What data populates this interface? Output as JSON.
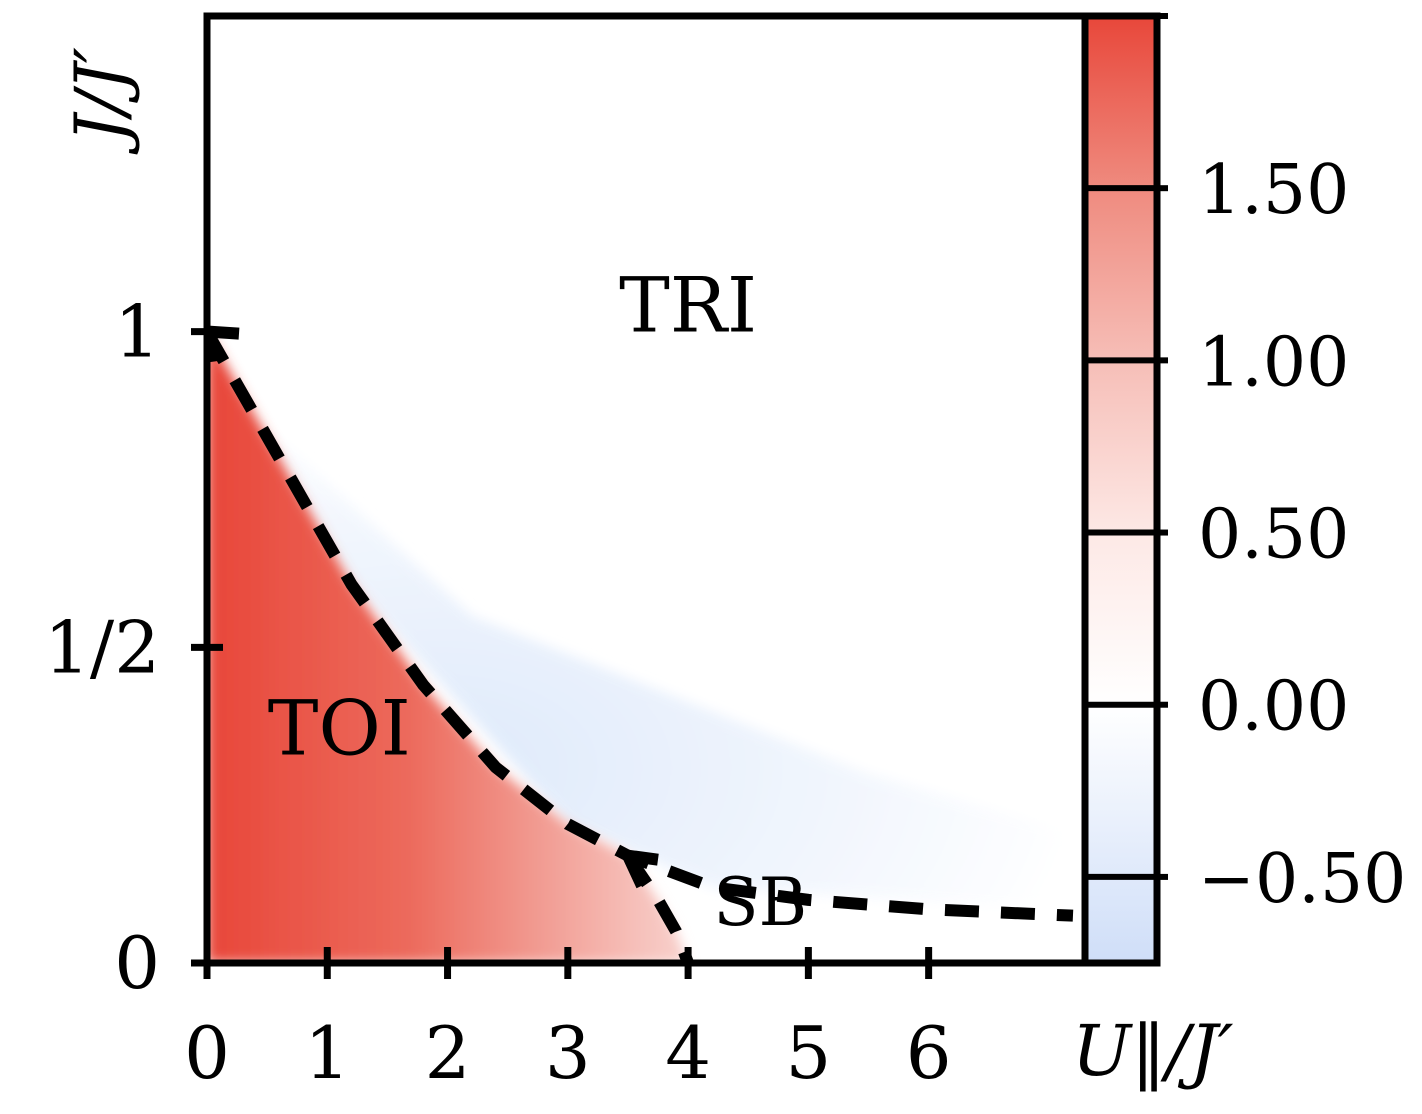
{
  "chart_data": {
    "type": "heatmap",
    "xlabel": "U‖/J′",
    "ylabel": "J/J′",
    "xlim": [
      0,
      7.3
    ],
    "ylim": [
      0,
      1.5
    ],
    "xticks": [
      {
        "value": 0,
        "label": "0"
      },
      {
        "value": 1,
        "label": "1"
      },
      {
        "value": 2,
        "label": "2"
      },
      {
        "value": 3,
        "label": "3"
      },
      {
        "value": 4,
        "label": "4"
      },
      {
        "value": 5,
        "label": "5"
      },
      {
        "value": 6,
        "label": "6"
      }
    ],
    "yticks": [
      {
        "value": 0,
        "label": "0"
      },
      {
        "value": 0.5,
        "label": "1/2"
      },
      {
        "value": 1,
        "label": "1"
      }
    ],
    "colorbar": {
      "range": [
        -0.75,
        2.0
      ],
      "ticks": [
        {
          "value": -0.5,
          "label": "−0.50"
        },
        {
          "value": 0,
          "label": "0.00"
        },
        {
          "value": 0.5,
          "label": "0.50"
        },
        {
          "value": 1.0,
          "label": "1.00"
        },
        {
          "value": 1.5,
          "label": "1.50"
        }
      ],
      "boundaries": [
        -0.75,
        -0.5,
        0,
        0.5,
        1.0,
        1.5,
        2.0
      ],
      "colors": {
        "low": "#cfdef8",
        "mid": "#ffffff",
        "high": "#e8473a"
      }
    },
    "regions": [
      {
        "label": "TRI",
        "x": 4.0,
        "y": 1.0
      },
      {
        "label": "TOI",
        "x": 1.1,
        "y": 0.33
      },
      {
        "label": "SB",
        "x": 4.6,
        "y": 0.06
      }
    ],
    "phase_boundaries": [
      {
        "style": "dashed",
        "points": [
          [
            0,
            1.0
          ],
          [
            0.6,
            0.8
          ],
          [
            1.2,
            0.6
          ],
          [
            1.8,
            0.44
          ],
          [
            2.4,
            0.31
          ],
          [
            3.0,
            0.22
          ],
          [
            3.5,
            0.17
          ],
          [
            4.2,
            0.12
          ],
          [
            5.0,
            0.1
          ],
          [
            6.0,
            0.085
          ],
          [
            7.2,
            0.075
          ]
        ]
      },
      {
        "style": "dashed",
        "points": [
          [
            3.5,
            0.17
          ],
          [
            3.75,
            0.1
          ],
          [
            3.9,
            0.05
          ],
          [
            4.0,
            0.0
          ]
        ]
      }
    ]
  }
}
